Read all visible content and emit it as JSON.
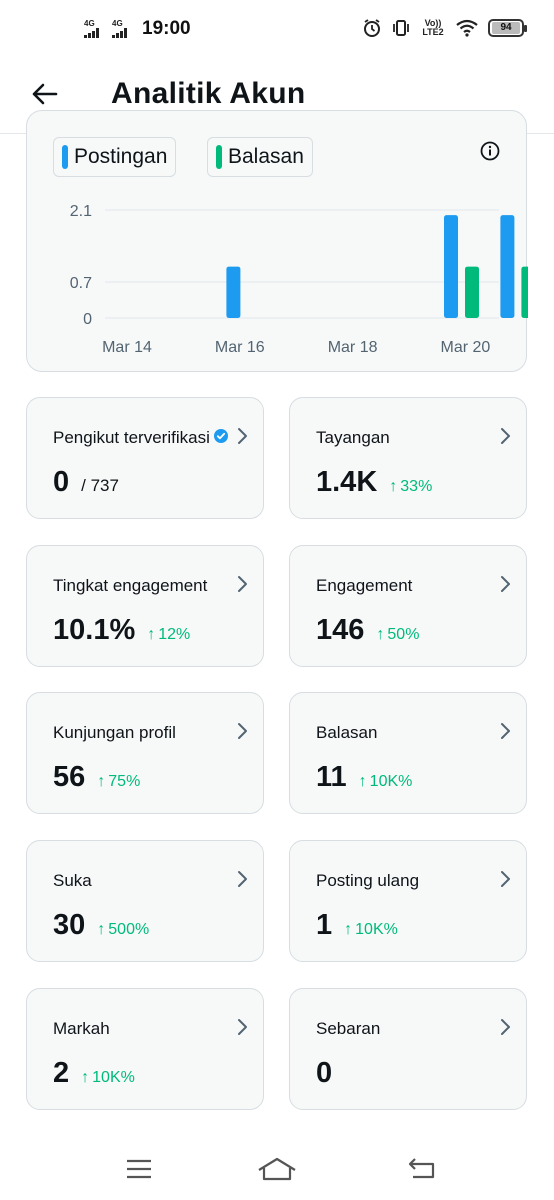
{
  "status_bar": {
    "time": "19:00",
    "sim1_label": "4G",
    "sim2_label": "4G",
    "volte_label": "Vo)) LTE2",
    "battery": "94"
  },
  "header": {
    "title": "Analitik Akun",
    "back_icon": "arrow-left-icon"
  },
  "chart": {
    "legend": [
      {
        "label": "Postingan",
        "color": "#1d9bf0"
      },
      {
        "label": "Balasan",
        "color": "#00ba7c"
      }
    ],
    "info_icon": "info-circle-icon"
  },
  "chart_data": {
    "type": "bar",
    "x_tick_labels": [
      "Mar 14",
      "Mar 16",
      "Mar 18",
      "Mar 20"
    ],
    "y_tick_labels": [
      "2.1",
      "0.7",
      "0"
    ],
    "ylim": [
      0,
      2.1
    ],
    "grid": true,
    "legend_placement": "top-left",
    "categories": [
      "Mar 14",
      "Mar 15",
      "Mar 16",
      "Mar 17",
      "Mar 18",
      "Mar 19",
      "Mar 20"
    ],
    "series": [
      {
        "name": "Postingan",
        "color": "#1d9bf0",
        "values": [
          0,
          1,
          0,
          0,
          0,
          2,
          2
        ]
      },
      {
        "name": "Balasan",
        "color": "#00ba7c",
        "values": [
          0,
          0,
          0,
          0,
          0,
          1,
          1
        ]
      }
    ]
  },
  "stats": [
    {
      "label": "Pengikut terverifikasi",
      "value": "0",
      "total": "/ 737",
      "change": "",
      "verified": true
    },
    {
      "label": "Tayangan",
      "value": "1.4K",
      "total": "",
      "change": "33%"
    },
    {
      "label": "Tingkat engagement",
      "value": "10.1%",
      "total": "",
      "change": "12%"
    },
    {
      "label": "Engagement",
      "value": "146",
      "total": "",
      "change": "50%"
    },
    {
      "label": "Kunjungan profil",
      "value": "56",
      "total": "",
      "change": "75%"
    },
    {
      "label": "Balasan",
      "value": "11",
      "total": "",
      "change": "10K%"
    },
    {
      "label": "Suka",
      "value": "30",
      "total": "",
      "change": "500%"
    },
    {
      "label": "Posting ulang",
      "value": "1",
      "total": "",
      "change": "10K%"
    },
    {
      "label": "Markah",
      "value": "2",
      "total": "",
      "change": "10K%"
    },
    {
      "label": "Sebaran",
      "value": "0",
      "total": "",
      "change": ""
    }
  ],
  "nav": {
    "menu_icon": "menu-icon",
    "home_icon": "home-icon",
    "back_icon": "back-icon"
  },
  "colors": {
    "accent_blue": "#1d9bf0",
    "accent_green": "#00ba7c",
    "card_bg": "#f7f9f9",
    "card_border": "#d7dde1"
  }
}
